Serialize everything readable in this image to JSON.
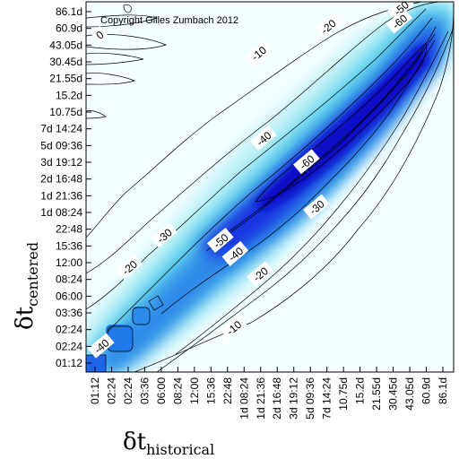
{
  "chart_data": {
    "type": "heatmap",
    "annotation": "Copyright Gilles Zumbach 2012",
    "xlabel": {
      "symbol": "δt",
      "subscript": "historical"
    },
    "ylabel": {
      "symbol": "δt",
      "subscript": "centered"
    },
    "x_ticks": [
      "01:12",
      "02:24",
      "02:24",
      "03:36",
      "06:00",
      "08:24",
      "12:00",
      "15:36",
      "22:48",
      "1d 08:24",
      "1d 21:36",
      "2d 16:48",
      "3d 19:12",
      "5d 09:36",
      "7d 14:24",
      "10.75d",
      "15.2d",
      "21.55d",
      "30.45d",
      "43.05d",
      "60.9d",
      "86.1d"
    ],
    "y_ticks": [
      "01:12",
      "02:24",
      "02:24",
      "03:36",
      "06:00",
      "08:24",
      "12:00",
      "15:36",
      "22:48",
      "1d 08:24",
      "1d 21:36",
      "2d 16:48",
      "3d 19:12",
      "5d 09:36",
      "7d 14:24",
      "10.75d",
      "15.2d",
      "21.55d",
      "30.45d",
      "43.05d",
      "60.9d",
      "86.1d"
    ],
    "contour_labels": [
      {
        "text": "0",
        "x": 0.3,
        "y": 19.6
      },
      {
        "text": "-10",
        "x": 9.9,
        "y": 18.5
      },
      {
        "text": "-20",
        "x": 14.1,
        "y": 20.1
      },
      {
        "text": "-60",
        "x": 18.4,
        "y": 20.4
      },
      {
        "text": "-50",
        "x": 18.5,
        "y": 21.2
      },
      {
        "text": "-40",
        "x": 10.2,
        "y": 13.4
      },
      {
        "text": "-60",
        "x": 12.8,
        "y": 12.0
      },
      {
        "text": "-30",
        "x": 13.4,
        "y": 9.3
      },
      {
        "text": "-30",
        "x": 4.2,
        "y": 7.6
      },
      {
        "text": "-20",
        "x": 2.1,
        "y": 5.7
      },
      {
        "text": "-50",
        "x": 7.6,
        "y": 7.3
      },
      {
        "text": "-40",
        "x": 8.5,
        "y": 6.5
      },
      {
        "text": "-20",
        "x": 10.0,
        "y": 5.3
      },
      {
        "text": "-10",
        "x": 8.4,
        "y": 2.1
      },
      {
        "text": "-40",
        "x": 0.4,
        "y": 1.0
      }
    ]
  }
}
